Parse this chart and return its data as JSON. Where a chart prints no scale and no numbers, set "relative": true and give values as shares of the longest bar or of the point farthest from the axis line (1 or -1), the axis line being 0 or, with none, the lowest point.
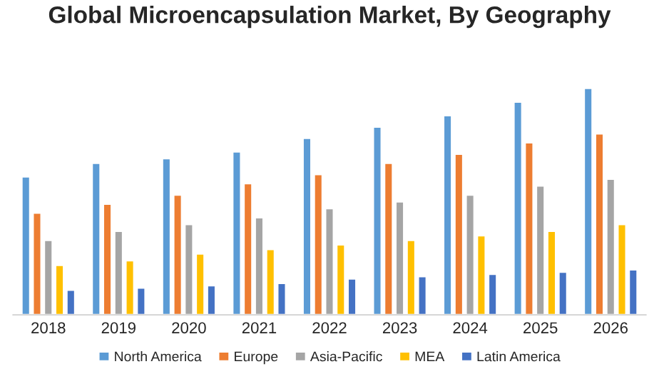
{
  "chart_data": {
    "type": "bar",
    "title": "Global Microencapsulation Market, By Geography",
    "relative": true,
    "categories": [
      "2018",
      "2019",
      "2020",
      "2021",
      "2022",
      "2023",
      "2024",
      "2025",
      "2026"
    ],
    "series": [
      {
        "name": "North America",
        "color": "#5b9bd5",
        "values": [
          0.61,
          0.67,
          0.69,
          0.72,
          0.78,
          0.83,
          0.88,
          0.94,
          1.0
        ]
      },
      {
        "name": "Europe",
        "color": "#ed7d31",
        "values": [
          0.45,
          0.49,
          0.53,
          0.58,
          0.62,
          0.67,
          0.71,
          0.76,
          0.8
        ]
      },
      {
        "name": "Asia-Pacific",
        "color": "#a5a5a5",
        "values": [
          0.33,
          0.37,
          0.4,
          0.43,
          0.47,
          0.5,
          0.53,
          0.57,
          0.6
        ]
      },
      {
        "name": "MEA",
        "color": "#ffc000",
        "values": [
          0.22,
          0.24,
          0.27,
          0.29,
          0.31,
          0.33,
          0.35,
          0.37,
          0.4
        ]
      },
      {
        "name": "Latin America",
        "color": "#4472c4",
        "values": [
          0.11,
          0.12,
          0.13,
          0.14,
          0.16,
          0.17,
          0.18,
          0.19,
          0.2
        ]
      }
    ],
    "legend": "bottom"
  }
}
